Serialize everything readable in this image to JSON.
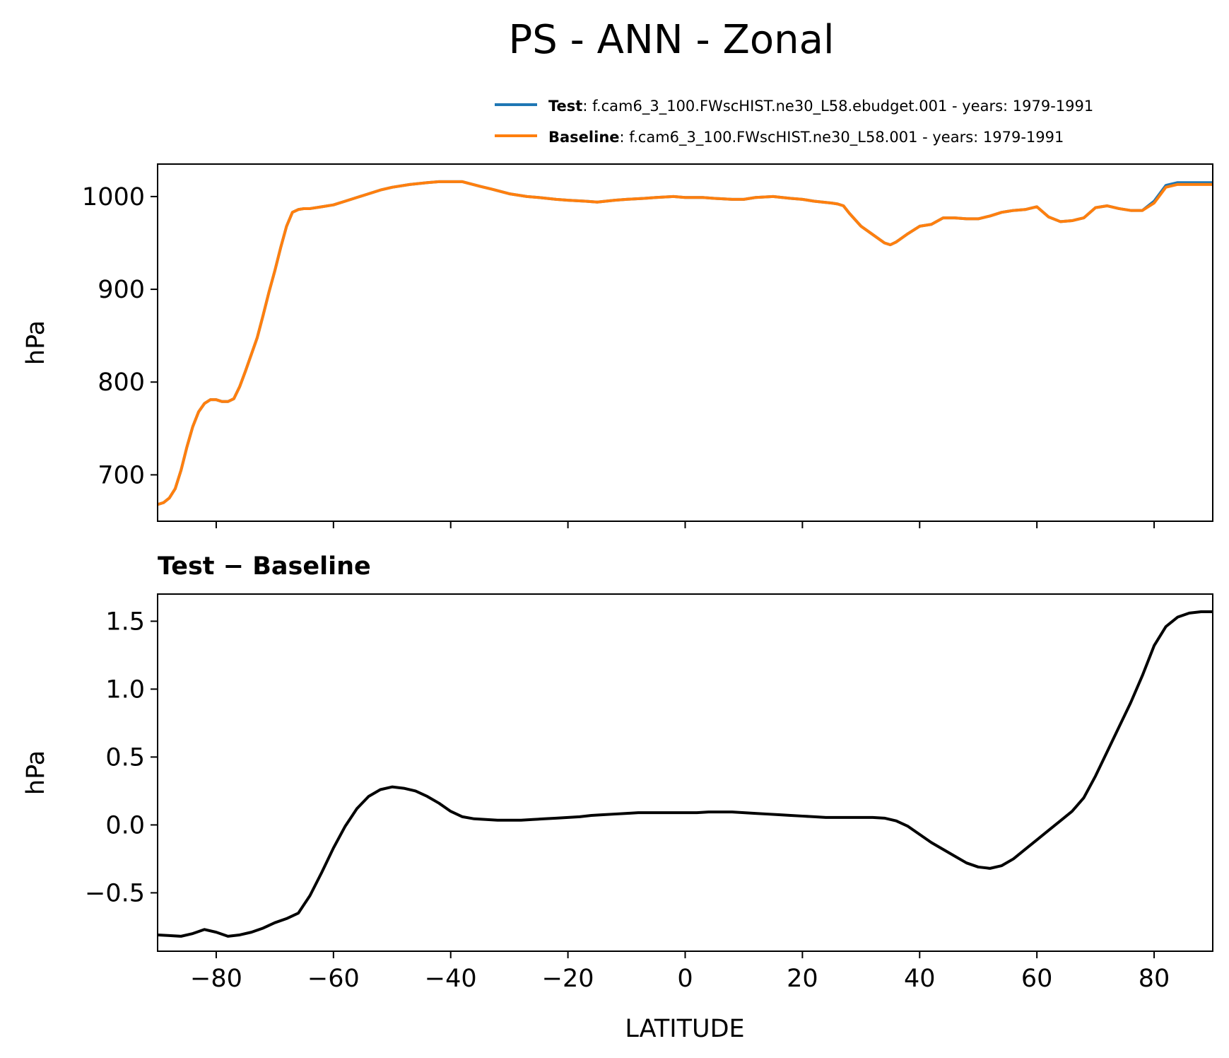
{
  "title": "PS - ANN - Zonal",
  "legend": [
    {
      "bold": "Test",
      "text": ": f.cam6_3_100.FWscHIST.ne30_L58.ebudget.001 - years: 1979-1991",
      "color": "#1f77b4"
    },
    {
      "bold": "Baseline",
      "text": ": f.cam6_3_100.FWscHIST.ne30_L58.001 - years: 1979-1991",
      "color": "#ff7f0e"
    }
  ],
  "chart_data": [
    {
      "type": "line",
      "title": "",
      "xlabel": "",
      "ylabel": "hPa",
      "xlim": [
        -90,
        90
      ],
      "ylim": [
        650,
        1035
      ],
      "yticks": [
        700,
        800,
        900,
        1000
      ],
      "xticks": [
        -80,
        -60,
        -40,
        -20,
        0,
        20,
        40,
        60,
        80
      ],
      "series": [
        {
          "name": "Test",
          "color": "#1f77b4",
          "x": [
            -90,
            -89,
            -88,
            -87,
            -86,
            -85,
            -84,
            -83,
            -82,
            -81,
            -80,
            -79,
            -78,
            -77,
            -76,
            -75,
            -74,
            -73,
            -72,
            -71,
            -70,
            -69,
            -68,
            -67,
            -66,
            -65,
            -64,
            -62,
            -60,
            -58,
            -55,
            -52,
            -50,
            -47,
            -44,
            -42,
            -40,
            -38,
            -35,
            -33,
            -30,
            -27,
            -25,
            -22,
            -20,
            -17,
            -15,
            -12,
            -10,
            -7,
            -5,
            -2,
            0,
            3,
            5,
            8,
            10,
            12,
            15,
            18,
            20,
            22,
            25,
            26,
            27,
            28,
            30,
            32,
            34,
            35,
            36,
            38,
            40,
            42,
            44,
            46,
            48,
            50,
            52,
            54,
            55,
            56,
            58,
            60,
            62,
            64,
            66,
            68,
            70,
            72,
            74,
            76,
            78,
            80,
            82,
            84,
            86,
            88,
            90
          ],
          "y": [
            668,
            670,
            675,
            685,
            705,
            730,
            752,
            768,
            777,
            781,
            781,
            779,
            779,
            782,
            795,
            812,
            830,
            848,
            872,
            897,
            920,
            945,
            968,
            983,
            986,
            987,
            987,
            989,
            991,
            995,
            1001,
            1007,
            1010,
            1013,
            1015,
            1016,
            1016,
            1016,
            1011,
            1008,
            1003,
            1000,
            999,
            997,
            996,
            995,
            994,
            996,
            997,
            998,
            999,
            1000,
            999,
            999,
            998,
            997,
            997,
            999,
            1000,
            998,
            997,
            995,
            993,
            992,
            990,
            982,
            968,
            959,
            950,
            948,
            951,
            960,
            968,
            970,
            977,
            977,
            976,
            976,
            979,
            983,
            984,
            985,
            986,
            989,
            978,
            973,
            974,
            977,
            988,
            990,
            987,
            985,
            985,
            995,
            1012,
            1015,
            1015,
            1015,
            1015
          ],
          "offset": 1.57
        },
        {
          "name": "Baseline",
          "color": "#ff7f0e",
          "x": [
            -90,
            -89,
            -88,
            -87,
            -86,
            -85,
            -84,
            -83,
            -82,
            -81,
            -80,
            -79,
            -78,
            -77,
            -76,
            -75,
            -74,
            -73,
            -72,
            -71,
            -70,
            -69,
            -68,
            -67,
            -66,
            -65,
            -64,
            -62,
            -60,
            -58,
            -55,
            -52,
            -50,
            -47,
            -44,
            -42,
            -40,
            -38,
            -35,
            -33,
            -30,
            -27,
            -25,
            -22,
            -20,
            -17,
            -15,
            -12,
            -10,
            -7,
            -5,
            -2,
            0,
            3,
            5,
            8,
            10,
            12,
            15,
            18,
            20,
            22,
            25,
            26,
            27,
            28,
            30,
            32,
            34,
            35,
            36,
            38,
            40,
            42,
            44,
            46,
            48,
            50,
            52,
            54,
            55,
            56,
            58,
            60,
            62,
            64,
            66,
            68,
            70,
            72,
            74,
            76,
            78,
            80,
            82,
            84,
            86,
            88,
            90
          ],
          "y": [
            668,
            670,
            675,
            685,
            705,
            730,
            752,
            768,
            777,
            781,
            781,
            779,
            779,
            782,
            795,
            812,
            830,
            848,
            872,
            897,
            920,
            945,
            968,
            983,
            986,
            987,
            987,
            989,
            991,
            995,
            1001,
            1007,
            1010,
            1013,
            1015,
            1016,
            1016,
            1016,
            1011,
            1008,
            1003,
            1000,
            999,
            997,
            996,
            995,
            994,
            996,
            997,
            998,
            999,
            1000,
            999,
            999,
            998,
            997,
            997,
            999,
            1000,
            998,
            997,
            995,
            993,
            992,
            990,
            982,
            968,
            959,
            950,
            948,
            951,
            960,
            968,
            970,
            977,
            977,
            976,
            976,
            979,
            983,
            984,
            985,
            986,
            989,
            978,
            973,
            974,
            977,
            988,
            990,
            987,
            985,
            985,
            993,
            1010,
            1013,
            1013,
            1013,
            1013
          ]
        }
      ]
    },
    {
      "type": "line",
      "title": "Test − Baseline",
      "xlabel": "LATITUDE",
      "ylabel": "hPa",
      "xlim": [
        -90,
        90
      ],
      "ylim": [
        -0.93,
        1.7
      ],
      "yticks": [
        -0.5,
        0.0,
        0.5,
        1.0,
        1.5
      ],
      "ytick_labels": [
        "−0.5",
        "0.0",
        "0.5",
        "1.0",
        "1.5"
      ],
      "xticks": [
        -80,
        -60,
        -40,
        -20,
        0,
        20,
        40,
        60,
        80
      ],
      "xtick_labels": [
        "−80",
        "−60",
        "−40",
        "−20",
        "0",
        "20",
        "40",
        "60",
        "80"
      ],
      "series": [
        {
          "name": "",
          "color": "#000000",
          "x": [
            -90,
            -88,
            -86,
            -84,
            -82,
            -80,
            -78,
            -76,
            -74,
            -72,
            -70,
            -68,
            -66,
            -64,
            -62,
            -60,
            -58,
            -56,
            -54,
            -52,
            -50,
            -48,
            -46,
            -44,
            -42,
            -40,
            -38,
            -36,
            -34,
            -32,
            -30,
            -28,
            -26,
            -24,
            -22,
            -20,
            -18,
            -16,
            -14,
            -12,
            -10,
            -8,
            -6,
            -4,
            -2,
            0,
            2,
            4,
            6,
            8,
            10,
            12,
            14,
            16,
            18,
            20,
            22,
            24,
            26,
            28,
            30,
            32,
            34,
            36,
            38,
            40,
            42,
            44,
            46,
            48,
            50,
            52,
            54,
            56,
            58,
            60,
            62,
            64,
            66,
            68,
            70,
            72,
            74,
            76,
            78,
            80,
            82,
            84,
            86,
            88,
            90
          ],
          "y": [
            -0.81,
            -0.815,
            -0.82,
            -0.8,
            -0.77,
            -0.79,
            -0.82,
            -0.81,
            -0.79,
            -0.76,
            -0.72,
            -0.69,
            -0.65,
            -0.52,
            -0.35,
            -0.17,
            -0.01,
            0.12,
            0.21,
            0.26,
            0.28,
            0.27,
            0.25,
            0.21,
            0.16,
            0.1,
            0.06,
            0.045,
            0.04,
            0.035,
            0.035,
            0.035,
            0.04,
            0.045,
            0.05,
            0.055,
            0.06,
            0.07,
            0.075,
            0.08,
            0.085,
            0.09,
            0.09,
            0.09,
            0.09,
            0.09,
            0.09,
            0.095,
            0.095,
            0.095,
            0.09,
            0.085,
            0.08,
            0.075,
            0.07,
            0.065,
            0.06,
            0.055,
            0.055,
            0.055,
            0.055,
            0.055,
            0.05,
            0.03,
            -0.01,
            -0.07,
            -0.13,
            -0.18,
            -0.23,
            -0.28,
            -0.31,
            -0.32,
            -0.3,
            -0.25,
            -0.18,
            -0.11,
            -0.04,
            0.03,
            0.1,
            0.2,
            0.36,
            0.54,
            0.72,
            0.9,
            1.1,
            1.32,
            1.46,
            1.53,
            1.56,
            1.57,
            1.57
          ]
        }
      ]
    }
  ]
}
